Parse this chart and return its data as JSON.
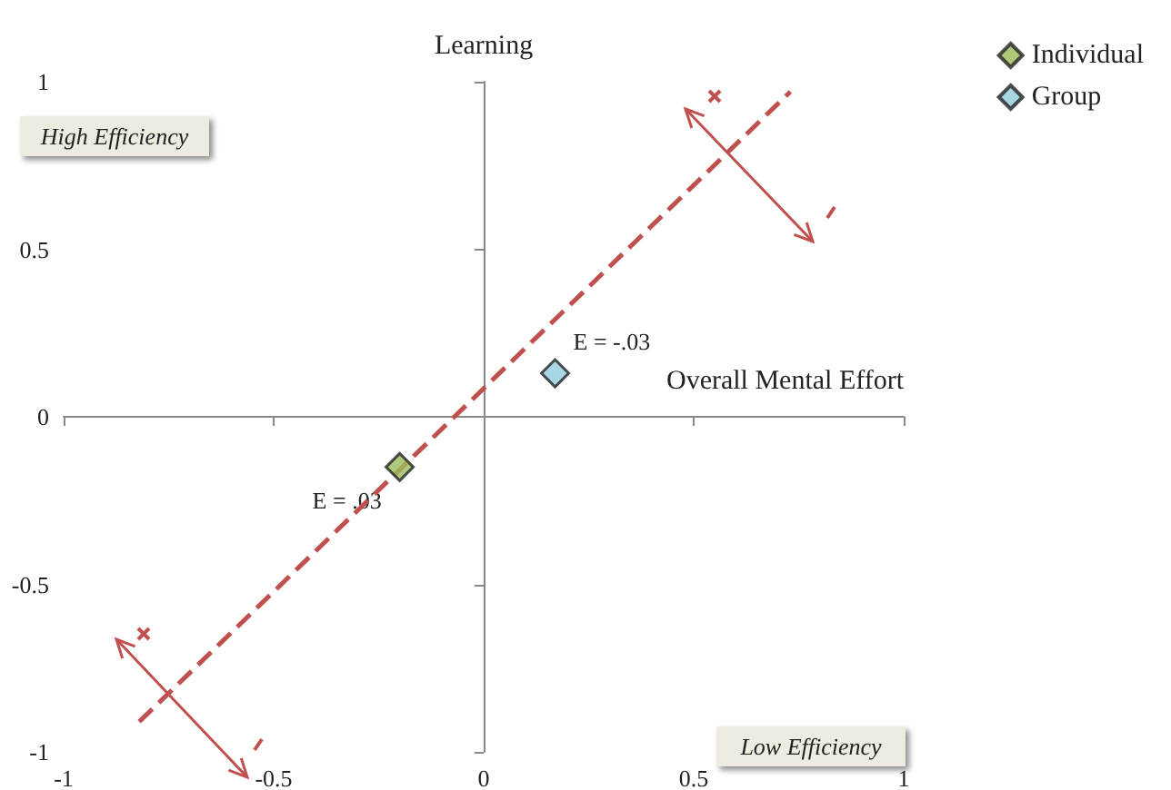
{
  "chart_data": {
    "type": "scatter",
    "xlabel": "Overall Mental Effort",
    "ylabel": "Learning",
    "xlim": [
      -1,
      1
    ],
    "ylim": [
      -1,
      1
    ],
    "xticks": [
      -1,
      -0.5,
      0,
      0.5,
      1
    ],
    "yticks": [
      -1,
      -0.5,
      0,
      0.5,
      1
    ],
    "legend": "top right",
    "marker": "diamond",
    "series": [
      {
        "name": "Individual",
        "color": "#9bbb59",
        "x": [
          -0.2
        ],
        "values": [
          -0.15
        ]
      },
      {
        "name": "Group",
        "color": "#92cddc",
        "x": [
          0.17
        ],
        "values": [
          0.13
        ]
      },
      {
        "type": "line",
        "color": "#c0504d",
        "line_style": "dashed",
        "marker": "none",
        "x": [
          -0.82,
          0.73
        ],
        "values": [
          -0.91,
          0.97
        ]
      }
    ],
    "annotations": [
      {
        "text": "E = .03",
        "x": -0.2,
        "y": -0.15
      },
      {
        "text": "E = -.03",
        "x": 0.17,
        "y": 0.13
      },
      "High Efficiency",
      "Low Efficiency"
    ]
  }
}
